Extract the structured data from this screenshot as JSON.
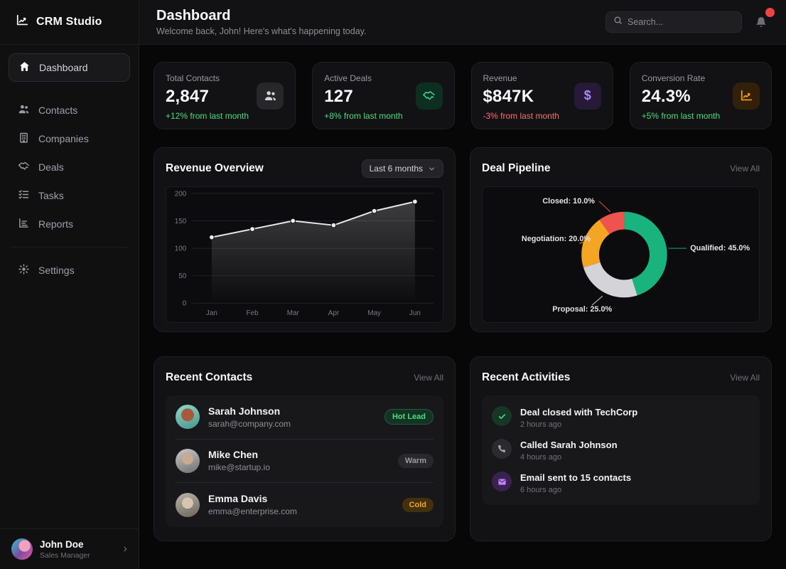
{
  "app": {
    "name": "CRM Studio"
  },
  "sidebar": {
    "items": [
      {
        "label": "Dashboard",
        "icon": "home",
        "active": true
      },
      {
        "label": "Contacts",
        "icon": "users"
      },
      {
        "label": "Companies",
        "icon": "building"
      },
      {
        "label": "Deals",
        "icon": "handshake"
      },
      {
        "label": "Tasks",
        "icon": "tasks"
      },
      {
        "label": "Reports",
        "icon": "reports"
      },
      {
        "label": "Settings",
        "icon": "gear"
      }
    ],
    "user": {
      "name": "John Doe",
      "role": "Sales Manager"
    }
  },
  "header": {
    "title": "Dashboard",
    "subtitle": "Welcome back, John! Here's what's happening today.",
    "search_placeholder": "Search...",
    "has_unread_notification": true
  },
  "stats": [
    {
      "label": "Total Contacts",
      "value": "2,847",
      "trend": "+12% from last month",
      "direction": "up",
      "icon": "users",
      "accent": "neutral"
    },
    {
      "label": "Active Deals",
      "value": "127",
      "trend": "+8% from last month",
      "direction": "up",
      "icon": "handshake",
      "accent": "green"
    },
    {
      "label": "Revenue",
      "value": "$847K",
      "trend": "-3% from last month",
      "direction": "down",
      "icon": "dollar",
      "accent": "purple"
    },
    {
      "label": "Conversion Rate",
      "value": "24.3%",
      "trend": "+5% from last month",
      "direction": "up",
      "icon": "trend-chart",
      "accent": "orange"
    }
  ],
  "revenue_overview": {
    "title": "Revenue Overview",
    "range_label": "Last 6 months"
  },
  "deal_pipeline": {
    "title": "Deal Pipeline",
    "view_all": "View All"
  },
  "recent_contacts": {
    "title": "Recent Contacts",
    "view_all": "View All",
    "items": [
      {
        "name": "Sarah Johnson",
        "email": "sarah@company.com",
        "badge": "Hot Lead",
        "badge_type": "hot"
      },
      {
        "name": "Mike Chen",
        "email": "mike@startup.io",
        "badge": "Warm",
        "badge_type": "warm"
      },
      {
        "name": "Emma Davis",
        "email": "emma@enterprise.com",
        "badge": "Cold",
        "badge_type": "cold"
      }
    ]
  },
  "recent_activities": {
    "title": "Recent Activities",
    "view_all": "View All",
    "items": [
      {
        "title": "Deal closed with TechCorp",
        "time": "2 hours ago",
        "icon": "check",
        "icon_color": "green"
      },
      {
        "title": "Called Sarah Johnson",
        "time": "4 hours ago",
        "icon": "phone",
        "icon_color": "gray"
      },
      {
        "title": "Email sent to 15 contacts",
        "time": "6 hours ago",
        "icon": "mail",
        "icon_color": "purple"
      }
    ]
  },
  "colors": {
    "positive": "#4ade80",
    "negative": "#f87171",
    "notification_dot": "#ef4444",
    "donut_qualified": "#19b47d",
    "donut_proposal": "#d4d4d8",
    "donut_negotiation": "#f5a524",
    "donut_closed": "#ef5350"
  },
  "chart_data": [
    {
      "type": "line",
      "title": "Revenue Overview",
      "x": [
        "Jan",
        "Feb",
        "Mar",
        "Apr",
        "May",
        "Jun"
      ],
      "series": [
        {
          "name": "Revenue",
          "values": [
            120,
            135,
            150,
            142,
            168,
            185
          ]
        }
      ],
      "ylim": [
        0,
        200
      ],
      "yticks": [
        0,
        50,
        100,
        150,
        200
      ],
      "xlabel": "",
      "ylabel": "",
      "grid": true,
      "legend": false,
      "style": "area-line-with-markers"
    },
    {
      "type": "pie",
      "title": "Deal Pipeline",
      "donut": true,
      "segments": [
        {
          "label": "Qualified",
          "value": 45.0,
          "color": "#19b47d"
        },
        {
          "label": "Proposal",
          "value": 25.0,
          "color": "#d4d4d8"
        },
        {
          "label": "Negotiation",
          "value": 20.0,
          "color": "#f5a524"
        },
        {
          "label": "Closed",
          "value": 10.0,
          "color": "#ef5350"
        }
      ],
      "label_format": "Name: 00.0%",
      "legend_position": "callout-labels"
    }
  ]
}
